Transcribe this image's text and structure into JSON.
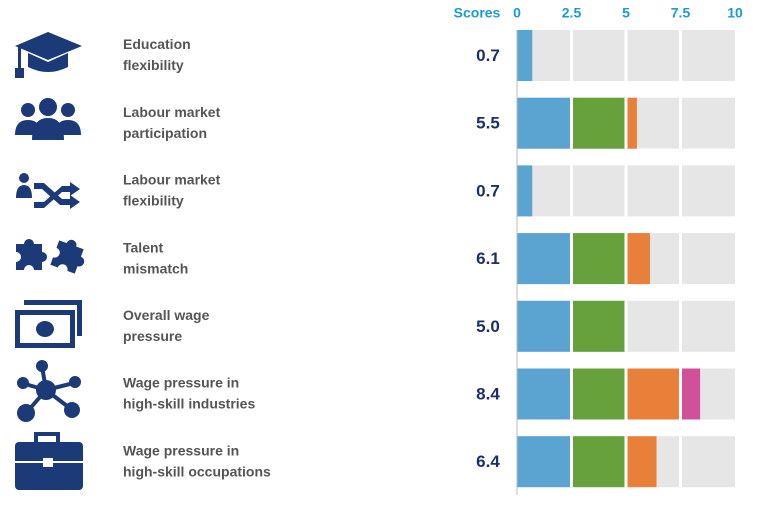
{
  "chart_data": {
    "type": "banded-bar",
    "axis_title": "Scores",
    "xlim": [
      0,
      10
    ],
    "xticks": [
      0,
      2.5,
      5,
      7.5,
      10
    ],
    "labels": [
      [
        "Education",
        "flexibility"
      ],
      [
        "Labour market",
        "participation"
      ],
      [
        "Labour market",
        "flexibility"
      ],
      [
        "Talent",
        "mismatch"
      ],
      [
        "Overall wage",
        "pressure"
      ],
      [
        "Wage pressure in",
        "high-skill industries"
      ],
      [
        "Wage pressure in",
        "high-skill occupations"
      ]
    ],
    "values": [
      0.7,
      5.5,
      0.7,
      6.1,
      5.0,
      8.4,
      6.4
    ],
    "value_labels": [
      "0.7",
      "5.5",
      "0.7",
      "6.1",
      "5.0",
      "8.4",
      "6.4"
    ],
    "band_colors": [
      "#5ba3d0",
      "#67a13c",
      "#e8803a",
      "#d0519a"
    ],
    "background_color": "#e6e6e6"
  }
}
